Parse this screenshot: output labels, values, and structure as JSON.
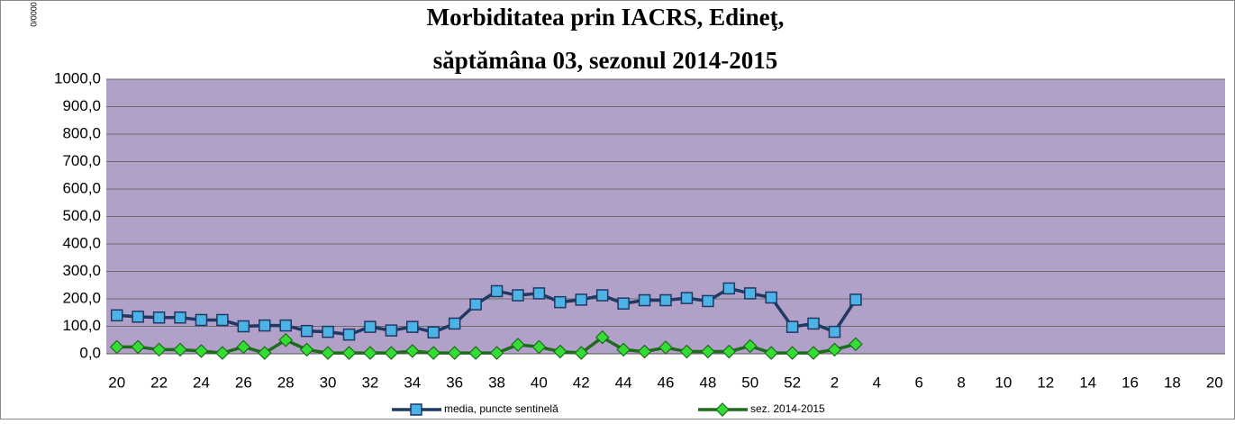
{
  "chart_data": {
    "type": "line",
    "title": [
      "Morbiditatea prin IACRS, Edineţ,",
      "săptămâna 03, sezonul 2014-2015"
    ],
    "y_label": "0/0000",
    "categories": [
      "20",
      null,
      "22",
      null,
      "24",
      null,
      "26",
      null,
      "28",
      null,
      "30",
      null,
      "32",
      null,
      "34",
      null,
      "36",
      null,
      "38",
      null,
      "40",
      null,
      "42",
      null,
      "44",
      null,
      "46",
      null,
      "48",
      null,
      "50",
      null,
      "52",
      null,
      "2",
      null,
      "4",
      null,
      "6",
      null,
      "8",
      null,
      "10",
      null,
      "12",
      null,
      "14",
      null,
      "16",
      null,
      "18",
      null,
      "20"
    ],
    "series": [
      {
        "name": "media, puncte sentinelă",
        "color": "#1f3864",
        "marker": "square",
        "marker_color": "#4db3e6",
        "values": [
          140,
          135,
          132,
          132,
          123,
          123,
          100,
          103,
          103,
          83,
          80,
          70,
          98,
          85,
          98,
          78,
          110,
          180,
          228,
          213,
          220,
          188,
          197,
          213,
          183,
          195,
          195,
          203,
          192,
          238,
          220,
          205,
          98,
          110,
          80,
          197,
          null,
          null,
          null,
          null,
          null,
          null,
          null,
          null,
          null,
          null,
          null,
          null,
          null,
          null,
          null,
          null,
          null
        ]
      },
      {
        "name": "sez. 2014-2015",
        "color": "#1e6b1e",
        "marker": "diamond",
        "marker_color": "#33dd33",
        "values": [
          25,
          25,
          15,
          15,
          10,
          3,
          25,
          3,
          50,
          15,
          3,
          3,
          3,
          3,
          10,
          3,
          3,
          3,
          3,
          33,
          25,
          8,
          3,
          60,
          15,
          8,
          23,
          8,
          8,
          8,
          28,
          3,
          3,
          3,
          15,
          35,
          null,
          null,
          null,
          null,
          null,
          null,
          null,
          null,
          null,
          null,
          null,
          null,
          null,
          null,
          null,
          null,
          null
        ]
      }
    ],
    "ylim": [
      0,
      1000
    ],
    "yticks": [
      {
        "value": 0,
        "label": "0,0"
      },
      {
        "value": 100,
        "label": "100,0"
      },
      {
        "value": 200,
        "label": "200,0"
      },
      {
        "value": 300,
        "label": "300,0"
      },
      {
        "value": 400,
        "label": "400,0"
      },
      {
        "value": 500,
        "label": "500,0"
      },
      {
        "value": 600,
        "label": "600,0"
      },
      {
        "value": 700,
        "label": "700,0"
      },
      {
        "value": 800,
        "label": "800,0"
      },
      {
        "value": 900,
        "label": "900,0"
      },
      {
        "value": 1000,
        "label": "1000,0"
      }
    ],
    "grid": true,
    "plot_background": "#b1a0c7",
    "legend": "bottom"
  }
}
